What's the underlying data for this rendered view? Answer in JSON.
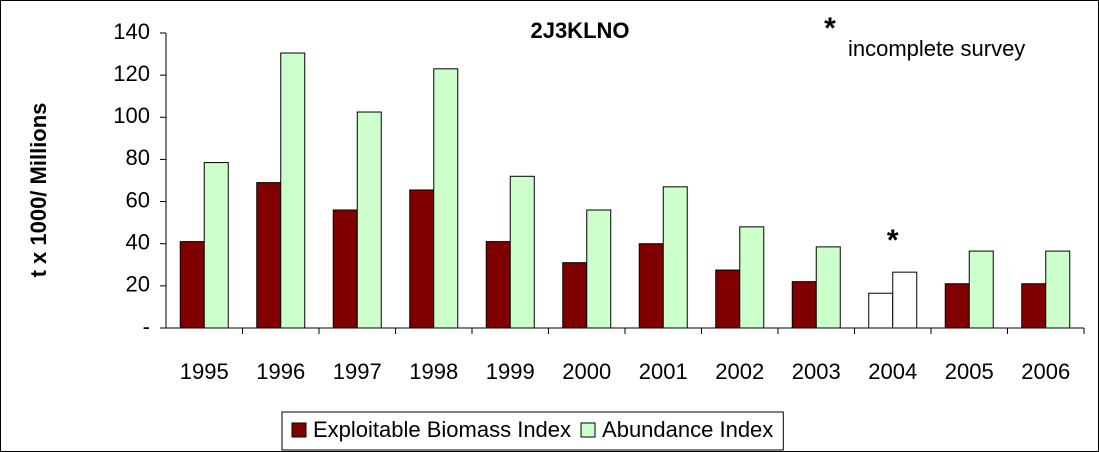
{
  "chart_data": {
    "type": "bar",
    "title": "2J3KLNO",
    "y_label": "t x 1000/ Millions",
    "categories": [
      "1995",
      "1996",
      "1997",
      "1998",
      "1999",
      "2000",
      "2001",
      "2002",
      "2003",
      "2004",
      "2005",
      "2006"
    ],
    "series": [
      {
        "name": "Exploitable Biomass Index",
        "color": "#800000",
        "colors": [
          "#800000",
          "#800000",
          "#800000",
          "#800000",
          "#800000",
          "#800000",
          "#800000",
          "#800000",
          "#800000",
          "#ffffff",
          "#800000",
          "#800000"
        ],
        "values": [
          41,
          69,
          56,
          65.5,
          41,
          31,
          40,
          27.5,
          22,
          16.5,
          21,
          21
        ]
      },
      {
        "name": "Abundance Index",
        "color": "#ccffcc",
        "colors": [
          "#ccffcc",
          "#ccffcc",
          "#ccffcc",
          "#ccffcc",
          "#ccffcc",
          "#ccffcc",
          "#ccffcc",
          "#ccffcc",
          "#ccffcc",
          "#ffffff",
          "#ccffcc",
          "#ccffcc"
        ],
        "values": [
          78.5,
          130.5,
          102.5,
          123,
          72,
          56,
          67,
          48,
          38.5,
          26.5,
          36.5,
          36.5
        ]
      }
    ],
    "category_annotations": [
      null,
      null,
      null,
      null,
      null,
      null,
      null,
      null,
      null,
      "*",
      null,
      null
    ],
    "note": {
      "marker": "*",
      "text": "incomplete survey"
    },
    "ylim": [
      0,
      140
    ],
    "yticks": [
      {
        "value": 0,
        "label": "-"
      },
      20,
      40,
      60,
      80,
      100,
      120,
      140
    ],
    "grid": false,
    "legend": "bottom"
  }
}
